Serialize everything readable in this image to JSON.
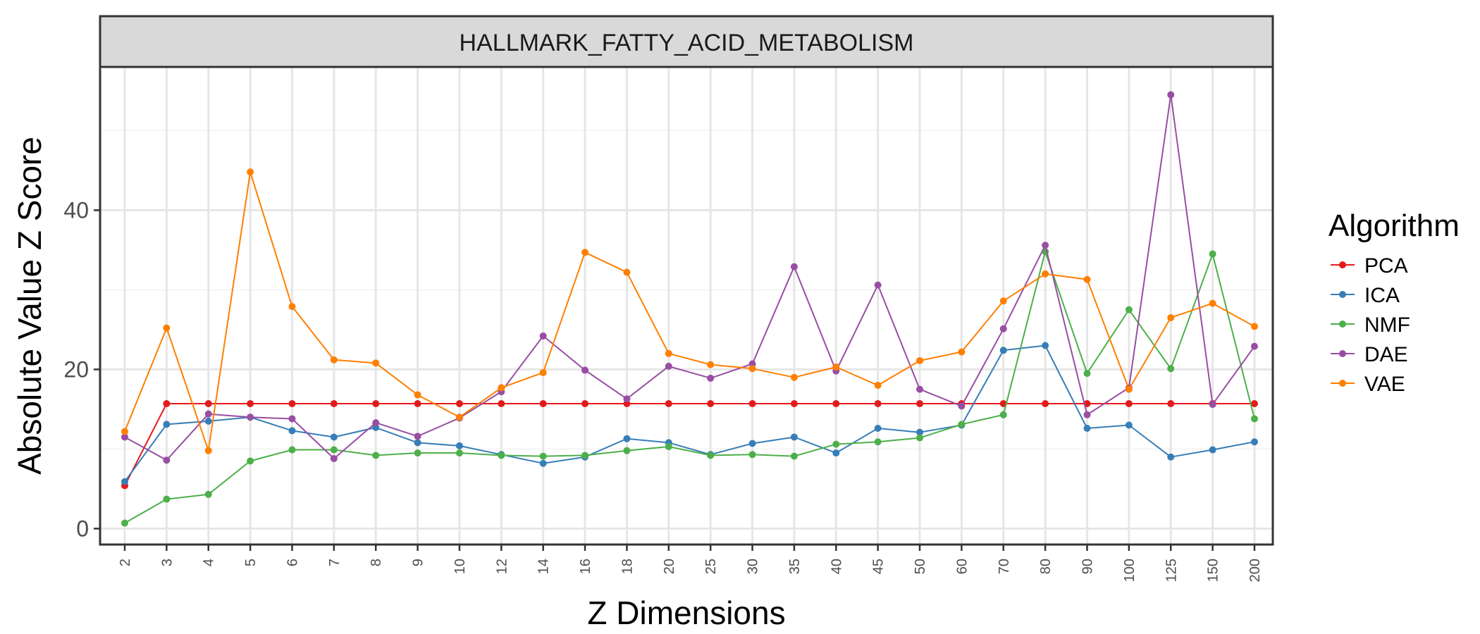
{
  "chart_data": {
    "type": "line",
    "title": "HALLMARK_FATTY_ACID_METABOLISM",
    "xlabel": "Z Dimensions",
    "ylabel": "Absolute Value Z Score",
    "x_scale": "categorical",
    "categories": [
      "2",
      "3",
      "4",
      "5",
      "6",
      "7",
      "8",
      "9",
      "10",
      "12",
      "14",
      "16",
      "18",
      "20",
      "25",
      "30",
      "35",
      "40",
      "45",
      "50",
      "60",
      "70",
      "80",
      "90",
      "100",
      "125",
      "150",
      "200"
    ],
    "ylim": [
      -2,
      58
    ],
    "y_ticks": [
      0,
      20,
      40
    ],
    "grid": true,
    "legend": {
      "title": "Algorithm",
      "position": "right"
    },
    "series": [
      {
        "name": "PCA",
        "color": "#e41a1c",
        "values": [
          5.4,
          15.7,
          15.7,
          15.7,
          15.7,
          15.7,
          15.7,
          15.7,
          15.7,
          15.7,
          15.7,
          15.7,
          15.7,
          15.7,
          15.7,
          15.7,
          15.7,
          15.7,
          15.7,
          15.7,
          15.7,
          15.7,
          15.7,
          15.7,
          15.7,
          15.7,
          15.7,
          15.7
        ]
      },
      {
        "name": "ICA",
        "color": "#377eb8",
        "values": [
          5.9,
          13.1,
          13.5,
          14.0,
          12.3,
          11.5,
          12.7,
          10.8,
          10.4,
          9.3,
          8.2,
          9.0,
          11.3,
          10.8,
          9.3,
          10.7,
          11.5,
          9.5,
          12.6,
          12.1,
          13.0,
          22.4,
          23.0,
          12.6,
          13.0,
          9.0,
          9.9,
          10.9
        ]
      },
      {
        "name": "NMF",
        "color": "#4daf4a",
        "values": [
          0.7,
          3.7,
          4.3,
          8.5,
          9.9,
          9.9,
          9.2,
          9.5,
          9.5,
          9.2,
          9.1,
          9.2,
          9.8,
          10.3,
          9.2,
          9.3,
          9.1,
          10.6,
          10.9,
          11.4,
          13.1,
          14.3,
          34.8,
          19.5,
          27.5,
          20.1,
          34.5,
          13.8
        ]
      },
      {
        "name": "DAE",
        "color": "#984ea3",
        "values": [
          11.5,
          8.6,
          14.4,
          14.0,
          13.8,
          8.8,
          13.3,
          11.6,
          13.9,
          17.2,
          24.2,
          19.9,
          16.3,
          20.4,
          18.9,
          20.7,
          32.9,
          19.8,
          30.6,
          17.5,
          15.4,
          25.1,
          35.6,
          14.3,
          17.7,
          54.5,
          15.6,
          22.9
        ]
      },
      {
        "name": "VAE",
        "color": "#ff7f00",
        "values": [
          12.2,
          25.2,
          9.8,
          44.8,
          27.9,
          21.2,
          20.8,
          16.8,
          14.0,
          17.7,
          19.6,
          34.7,
          32.2,
          22.0,
          20.6,
          20.1,
          19.0,
          20.3,
          18.0,
          21.1,
          22.2,
          28.6,
          32.0,
          31.3,
          17.5,
          26.5,
          28.3,
          25.4
        ]
      }
    ]
  }
}
